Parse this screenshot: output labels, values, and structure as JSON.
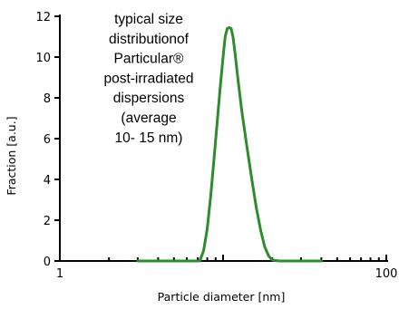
{
  "chart_data": {
    "type": "line",
    "xscale": "log",
    "xlim": [
      1,
      100
    ],
    "ylim": [
      0,
      12
    ],
    "xticks": [
      1,
      100
    ],
    "xtick_labels": [
      "1",
      "100"
    ],
    "yticks": [
      0,
      2,
      4,
      6,
      8,
      10,
      12
    ],
    "ytick_labels": [
      "0",
      "2",
      "4",
      "6",
      "8",
      "10",
      "12"
    ],
    "xlabel": "Particle  diameter  [nm]",
    "ylabel": "Fraction  [a.u.]",
    "annotation_lines": [
      "typical size",
      "distributionof",
      "Particular®",
      "post-irradiated",
      "dispersions",
      "(average",
      "10- 15 nm)"
    ],
    "grid": false,
    "legend": "none",
    "line_color": "#2e8b2e",
    "series": [
      {
        "x": [
          3,
          7.2,
          7.6,
          8.0,
          8.4,
          8.8,
          9.2,
          9.6,
          10.0,
          10.3,
          10.6,
          10.9,
          11.2,
          11.5,
          11.8,
          12.3,
          13.0,
          14.0,
          15.0,
          16.0,
          17.0,
          18.0,
          19.0,
          20.0,
          22.0,
          25.0,
          40.0
        ],
        "y": [
          0,
          0,
          0.5,
          1.6,
          3.2,
          5.0,
          6.8,
          8.5,
          10.0,
          11.0,
          11.4,
          11.45,
          11.4,
          11.0,
          10.3,
          9.0,
          7.4,
          5.6,
          4.0,
          2.6,
          1.5,
          0.7,
          0.25,
          0.05,
          0,
          0,
          0
        ]
      }
    ]
  }
}
